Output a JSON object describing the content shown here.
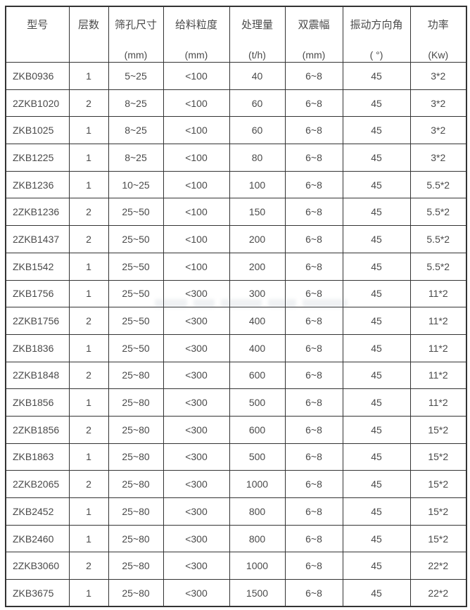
{
  "colors": {
    "background": "#ffffff",
    "grid_border": "#333333",
    "text": "#4a4a4a"
  },
  "table": {
    "columns": [
      {
        "label": "型号",
        "unit": ""
      },
      {
        "label": "层数",
        "unit": ""
      },
      {
        "label": "筛孔尺寸",
        "unit": "(mm)"
      },
      {
        "label": "给料粒度",
        "unit": "(mm)"
      },
      {
        "label": "处理量",
        "unit": "(t/h)"
      },
      {
        "label": "双震幅",
        "unit": "(mm)"
      },
      {
        "label": "振动方向角",
        "unit": "( °)"
      },
      {
        "label": "功率",
        "unit": "(Kw)"
      }
    ],
    "rows": [
      [
        "ZKB0936",
        "1",
        "5~25",
        "<100",
        "40",
        "6~8",
        "45",
        "3*2"
      ],
      [
        "2ZKB1020",
        "2",
        "8~25",
        "<100",
        "60",
        "6~8",
        "45",
        "3*2"
      ],
      [
        "ZKB1025",
        "1",
        "8~25",
        "<100",
        "60",
        "6~8",
        "45",
        "3*2"
      ],
      [
        "ZKB1225",
        "1",
        "8~25",
        "<100",
        "80",
        "6~8",
        "45",
        "3*2"
      ],
      [
        "ZKB1236",
        "1",
        "10~25",
        "<100",
        "100",
        "6~8",
        "45",
        "5.5*2"
      ],
      [
        "2ZKB1236",
        "2",
        "25~50",
        "<100",
        "150",
        "6~8",
        "45",
        "5.5*2"
      ],
      [
        "2ZKB1437",
        "2",
        "25~50",
        "<100",
        "200",
        "6~8",
        "45",
        "5.5*2"
      ],
      [
        "ZKB1542",
        "1",
        "25~50",
        "<100",
        "200",
        "6~8",
        "45",
        "5.5*2"
      ],
      [
        "ZKB1756",
        "1",
        "25~50",
        "<300",
        "300",
        "6~8",
        "45",
        "11*2"
      ],
      [
        "2ZKB1756",
        "2",
        "25~50",
        "<300",
        "400",
        "6~8",
        "45",
        "11*2"
      ],
      [
        "ZKB1836",
        "1",
        "25~50",
        "<300",
        "400",
        "6~8",
        "45",
        "11*2"
      ],
      [
        "2ZKB1848",
        "2",
        "25~80",
        "<300",
        "600",
        "6~8",
        "45",
        "11*2"
      ],
      [
        "ZKB1856",
        "1",
        "25~80",
        "<300",
        "500",
        "6~8",
        "45",
        "11*2"
      ],
      [
        "2ZKB1856",
        "2",
        "25~80",
        "<300",
        "600",
        "6~8",
        "45",
        "15*2"
      ],
      [
        "ZKB1863",
        "1",
        "25~80",
        "<300",
        "500",
        "6~8",
        "45",
        "15*2"
      ],
      [
        "2ZKB2065",
        "2",
        "25~80",
        "<300",
        "1000",
        "6~8",
        "45",
        "15*2"
      ],
      [
        "ZKB2452",
        "1",
        "25~80",
        "<300",
        "800",
        "6~8",
        "45",
        "15*2"
      ],
      [
        "ZKB2460",
        "1",
        "25~80",
        "<300",
        "800",
        "6~8",
        "45",
        "15*2"
      ],
      [
        "2ZKB3060",
        "2",
        "25~80",
        "<300",
        "1000",
        "6~8",
        "45",
        "22*2"
      ],
      [
        "ZKB3675",
        "1",
        "25~80",
        "<300",
        "1500",
        "6~8",
        "45",
        "22*2"
      ]
    ]
  },
  "chart_data": {
    "type": "table",
    "title": "",
    "columns": [
      "型号",
      "层数",
      "筛孔尺寸 (mm)",
      "给料粒度 (mm)",
      "处理量 (t/h)",
      "双震幅 (mm)",
      "振动方向角 ( °)",
      "功率 (Kw)"
    ]
  }
}
